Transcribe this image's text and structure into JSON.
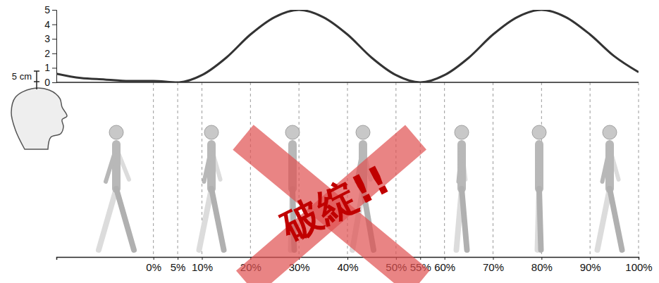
{
  "chart_data": {
    "type": "line",
    "annotations": [
      "5 cm",
      "破綻!!"
    ],
    "x": [
      -20,
      -15,
      -10,
      -5,
      0,
      5,
      10,
      15,
      20,
      25,
      30,
      35,
      40,
      45,
      50,
      55,
      60,
      65,
      70,
      75,
      80,
      85,
      90,
      95,
      100
    ],
    "values": [
      0.6,
      0.3,
      0.2,
      0.1,
      0.1,
      0,
      0.5,
      1.7,
      3.3,
      4.5,
      5,
      4.5,
      3.3,
      1.7,
      0.5,
      0,
      0.5,
      1.7,
      3.3,
      4.5,
      5,
      4.5,
      3.3,
      1.8,
      0.7
    ],
    "color": "#333333",
    "xlim": [
      -20,
      100
    ],
    "ylim": [
      0,
      5
    ],
    "xticks": [
      {
        "value": 0,
        "label": "0%"
      },
      {
        "value": 5,
        "label": "5%"
      },
      {
        "value": 10,
        "label": "10%"
      },
      {
        "value": 20,
        "label": "20%"
      },
      {
        "value": 30,
        "label": "30%"
      },
      {
        "value": 40,
        "label": "40%"
      },
      {
        "value": 50,
        "label": "50%"
      },
      {
        "value": 55,
        "label": "55%"
      },
      {
        "value": 60,
        "label": "60%"
      },
      {
        "value": 70,
        "label": "70%"
      },
      {
        "value": 80,
        "label": "80%"
      },
      {
        "value": 90,
        "label": "90%"
      },
      {
        "value": 100,
        "label": "100%"
      }
    ],
    "yticks": [
      0,
      1,
      2,
      3,
      4,
      5
    ],
    "grid": true
  }
}
